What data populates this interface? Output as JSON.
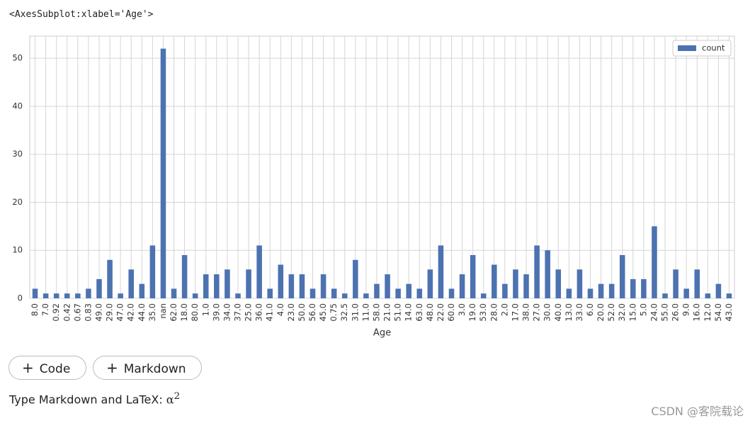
{
  "output_text": "<AxesSubplot:xlabel='Age'>",
  "chart_data": {
    "type": "bar",
    "xlabel": "Age",
    "categories": [
      "8.0",
      "7.0",
      "0.92",
      "0.42",
      "0.67",
      "0.83",
      "49.0",
      "29.0",
      "47.0",
      "42.0",
      "44.0",
      "35.0",
      "nan",
      "62.0",
      "18.0",
      "80.0",
      "1.0",
      "39.0",
      "34.0",
      "37.0",
      "25.0",
      "36.0",
      "41.0",
      "4.0",
      "23.0",
      "50.0",
      "56.0",
      "45.0",
      "0.75",
      "32.5",
      "31.0",
      "11.0",
      "58.0",
      "21.0",
      "51.0",
      "14.0",
      "63.0",
      "48.0",
      "22.0",
      "60.0",
      "3.0",
      "19.0",
      "53.0",
      "28.0",
      "2.0",
      "17.0",
      "38.0",
      "27.0",
      "30.0",
      "40.0",
      "13.0",
      "33.0",
      "6.0",
      "20.0",
      "52.0",
      "32.0",
      "15.0",
      "5.0",
      "24.0",
      "55.0",
      "26.0",
      "9.0",
      "16.0",
      "12.0",
      "54.0",
      "43.0"
    ],
    "series": [
      {
        "name": "count",
        "color": "#4c72b0",
        "values": [
          2,
          1,
          1,
          1,
          1,
          2,
          4,
          8,
          1,
          6,
          3,
          11,
          52,
          2,
          9,
          1,
          5,
          5,
          6,
          1,
          6,
          11,
          2,
          7,
          5,
          5,
          2,
          5,
          2,
          1,
          8,
          1,
          3,
          5,
          2,
          3,
          2,
          6,
          11,
          2,
          5,
          9,
          1,
          7,
          3,
          6,
          5,
          11,
          10,
          6,
          2,
          6,
          2,
          3,
          3,
          9,
          4,
          4,
          15,
          1,
          6,
          2,
          6,
          1,
          3,
          1
        ]
      }
    ],
    "ylim": [
      0,
      54.6
    ],
    "yticks": [
      0,
      10,
      20,
      30,
      40,
      50
    ],
    "grid": true,
    "legend": "upper right"
  },
  "buttons": [
    "Code",
    "Markdown"
  ],
  "markdown_prompt": {
    "text": "Type Markdown and LaTeX:",
    "math": "α",
    "superscript": "2"
  },
  "watermark": "CSDN @客院载论"
}
